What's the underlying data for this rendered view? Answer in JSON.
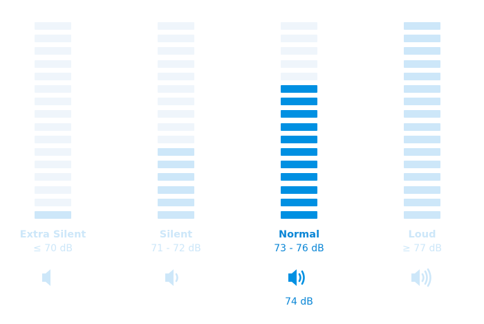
{
  "total_segments": 16,
  "colors": {
    "inactive": "#eff5fb",
    "light": "#cde7f9",
    "active": "#0090e2",
    "text_active": "#0a86d6"
  },
  "levels": [
    {
      "name": "Extra Silent",
      "range": "≤ 70 dB",
      "filled_segments": 1,
      "icon": "speaker-mute-icon",
      "waves": 0,
      "selected": false
    },
    {
      "name": "Silent",
      "range": "71 - 72 dB",
      "filled_segments": 6,
      "icon": "speaker-low-icon",
      "waves": 1,
      "selected": false
    },
    {
      "name": "Normal",
      "range": "73 - 76 dB",
      "filled_segments": 11,
      "icon": "speaker-medium-icon",
      "waves": 2,
      "selected": true,
      "current_value": "74 dB"
    },
    {
      "name": "Loud",
      "range": "≥ 77 dB",
      "filled_segments": 16,
      "icon": "speaker-high-icon",
      "waves": 3,
      "selected": false
    }
  ]
}
